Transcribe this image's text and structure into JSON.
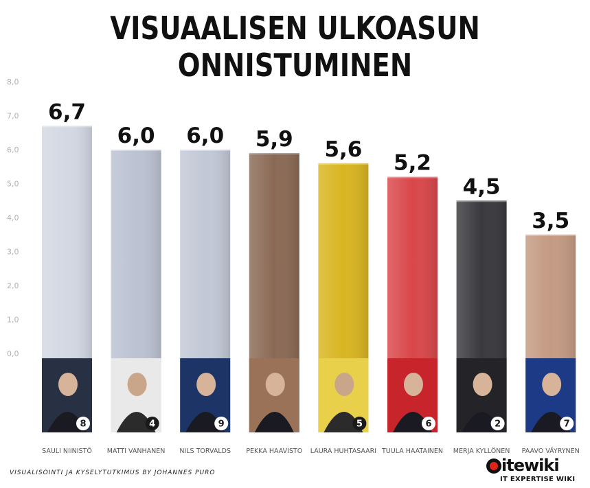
{
  "title": "VISUAALISEN ULKOASUN ONNISTUMINEN",
  "footer": {
    "credit": "VISUALISOINTI JA KYSELYTUTKIMUS BY JOHANNES PURO",
    "logo_brand": "itewiki",
    "logo_tag": "IT EXPERTISE WIKI"
  },
  "colors": {
    "axis_text": "#b0b0b0",
    "label_text": "#555555",
    "value_text": "#111111"
  },
  "chart_data": {
    "type": "bar",
    "title": "VISUAALISEN ULKOASUN ONNISTUMINEN",
    "xlabel": "",
    "ylabel": "",
    "ylim": [
      0,
      8
    ],
    "yticks": [
      "0,0",
      "1,0",
      "2,0",
      "3,0",
      "4,0",
      "5,0",
      "6,0",
      "7,0",
      "8,0"
    ],
    "grid": false,
    "categories": [
      "SAULI NIINISTÖ",
      "MATTI VANHANEN",
      "NILS TORVALDS",
      "PEKKA HAAVISTO",
      "LAURA HUHTASAARI",
      "TUULA HAATAINEN",
      "MERJA KYLLÖNEN",
      "PAAVO VÄYRYNEN"
    ],
    "values": [
      6.7,
      6.0,
      6.0,
      5.9,
      5.6,
      5.2,
      4.5,
      3.5
    ],
    "value_labels": [
      "6,7",
      "6,0",
      "6,0",
      "5,9",
      "5,6",
      "5,2",
      "4,5",
      "3,5"
    ],
    "bar_colors": [
      "#d3d8e3",
      "#bcc2d2",
      "#c2c8d6",
      "#8a6a55",
      "#d8b521",
      "#d9474a",
      "#3a3a3e",
      "#c49a82"
    ],
    "poster_colors": [
      "#283044",
      "#e9e9e9",
      "#1d3566",
      "#9a7258",
      "#e9d04a",
      "#c8242b",
      "#242428",
      "#1c3a86"
    ],
    "poster_numbers": [
      "8",
      "4",
      "9",
      "",
      "5",
      "6",
      "2",
      "7"
    ]
  }
}
